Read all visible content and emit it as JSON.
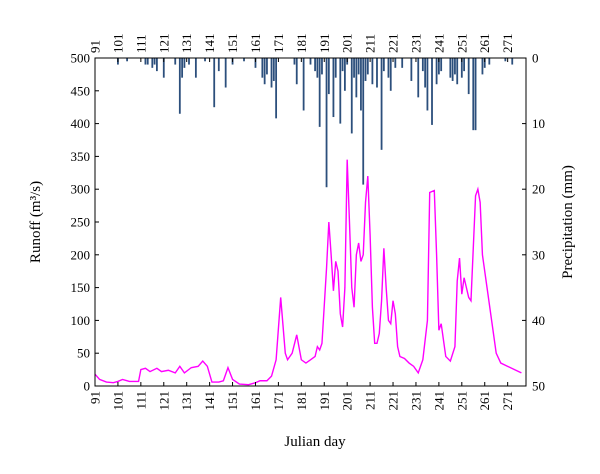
{
  "chart_data": {
    "type": "line",
    "xlabel": "Julian day",
    "ylabel": "Runoff (m³/s)",
    "y2label": "Precipitation (mm)",
    "xlim": [
      91,
      279
    ],
    "xticks": [
      91,
      101,
      111,
      121,
      131,
      141,
      151,
      161,
      171,
      181,
      191,
      201,
      211,
      221,
      231,
      241,
      251,
      261,
      271
    ],
    "ylim": [
      0,
      500
    ],
    "yticks": [
      0,
      50,
      100,
      150,
      200,
      250,
      300,
      350,
      400,
      450,
      500
    ],
    "y2lim": [
      50,
      0
    ],
    "y2ticks": [
      0,
      10,
      20,
      30,
      40,
      50
    ],
    "series": [
      {
        "type": "line",
        "color": "#ff00ff",
        "x": [
          91,
          93,
          96,
          99,
          101,
          103,
          106,
          110,
          111,
          113,
          115,
          118,
          120,
          123,
          126,
          128,
          130,
          133,
          136,
          138,
          140,
          142,
          145,
          147,
          149,
          151,
          154,
          158,
          161,
          163,
          166,
          168,
          170,
          172,
          174,
          175,
          177,
          179,
          181,
          183,
          185,
          187,
          188,
          189,
          190,
          192,
          193,
          194,
          195,
          196,
          197,
          198,
          199,
          200,
          201,
          202,
          203,
          204,
          205,
          206,
          207,
          208,
          209,
          210,
          211,
          212,
          213,
          214,
          215,
          216,
          217,
          218,
          219,
          220,
          221,
          222,
          223,
          224,
          226,
          228,
          230,
          232,
          234,
          236,
          237,
          239,
          240,
          241,
          242,
          244,
          246,
          248,
          249,
          250,
          251,
          252,
          253,
          254,
          255,
          257,
          258,
          259,
          260,
          262,
          264,
          266,
          268,
          271,
          274,
          277
        ],
        "values": [
          18,
          10,
          6,
          5,
          7,
          10,
          7,
          7,
          25,
          27,
          22,
          27,
          22,
          24,
          20,
          30,
          20,
          28,
          30,
          38,
          30,
          6,
          6,
          8,
          28,
          10,
          3,
          2,
          5,
          8,
          8,
          15,
          40,
          135,
          50,
          40,
          50,
          78,
          40,
          35,
          40,
          45,
          60,
          55,
          65,
          180,
          250,
          200,
          145,
          190,
          175,
          110,
          90,
          150,
          345,
          250,
          150,
          120,
          200,
          218,
          190,
          200,
          280,
          320,
          230,
          120,
          65,
          65,
          80,
          130,
          210,
          150,
          100,
          95,
          130,
          110,
          60,
          45,
          42,
          35,
          30,
          20,
          40,
          100,
          295,
          298,
          200,
          85,
          95,
          45,
          38,
          60,
          160,
          195,
          140,
          165,
          150,
          135,
          130,
          290,
          300,
          280,
          200,
          150,
          100,
          50,
          35,
          30,
          25,
          20
        ]
      },
      {
        "type": "bar",
        "axis": "y2",
        "color": "#2c4f7c",
        "x": [
          101,
          105,
          113,
          114,
          116,
          117,
          118,
          121,
          126,
          128,
          129,
          130,
          132,
          135,
          139,
          143,
          145,
          148,
          151,
          156,
          161,
          164,
          165,
          166,
          168,
          169,
          170,
          178,
          179,
          182,
          185,
          187,
          188,
          189,
          190,
          192,
          193,
          195,
          196,
          198,
          199,
          200,
          201,
          203,
          204,
          205,
          206,
          207,
          208,
          209,
          210,
          212,
          214,
          216,
          217,
          219,
          220,
          222,
          225,
          229,
          232,
          234,
          235,
          236,
          238,
          240,
          241,
          242,
          246,
          247,
          248,
          249,
          251,
          252,
          254,
          256,
          257,
          260,
          261,
          263,
          270,
          273
        ],
        "values": [
          1,
          0.5,
          1,
          1,
          1.5,
          1,
          2,
          3,
          1,
          8.5,
          3,
          1.5,
          1,
          3,
          0.5,
          7.5,
          2,
          4.5,
          1,
          0.5,
          1.5,
          3,
          4,
          2.5,
          4.5,
          3.5,
          9.2,
          1,
          4,
          8,
          1,
          2,
          3,
          10.5,
          2.5,
          19.7,
          5.5,
          9,
          3,
          10,
          2,
          5,
          1,
          11.5,
          3,
          6,
          2.5,
          8,
          19.3,
          3.5,
          2.5,
          4,
          4.5,
          14,
          2,
          3,
          5,
          1.5,
          1.5,
          3.5,
          6,
          2,
          4.5,
          8,
          10.2,
          4,
          2.5,
          2,
          3,
          3.5,
          2.5,
          4,
          3,
          2,
          5.5,
          11,
          11,
          2.5,
          1.5,
          1,
          0.5,
          1
        ]
      }
    ]
  }
}
